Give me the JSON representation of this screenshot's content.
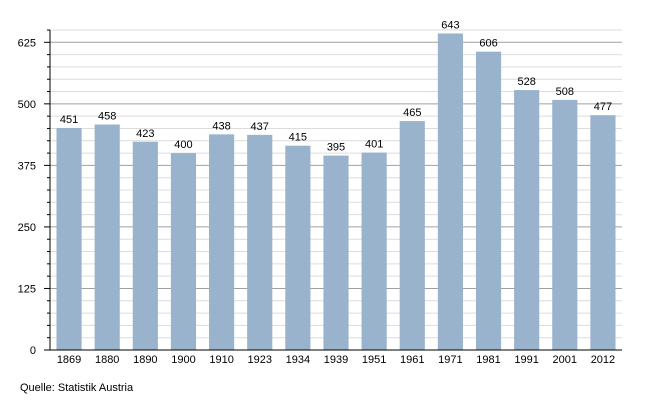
{
  "chart_data": {
    "type": "bar",
    "title": "",
    "xlabel": "",
    "ylabel": "",
    "categories": [
      "1869",
      "1880",
      "1890",
      "1900",
      "1910",
      "1923",
      "1934",
      "1939",
      "1951",
      "1961",
      "1971",
      "1981",
      "1991",
      "2001",
      "2012"
    ],
    "values": [
      451,
      458,
      423,
      400,
      438,
      437,
      415,
      395,
      401,
      465,
      643,
      606,
      528,
      508,
      477
    ],
    "ylim": [
      0,
      650
    ],
    "yticks": [
      0,
      125,
      250,
      375,
      500,
      625
    ],
    "minor_tick_step": 25,
    "grid": true,
    "data_labels": true,
    "bar_color": "#9ab3cc",
    "major_grid_color": "#a0a0a0",
    "minor_grid_color": "#dcdcdc"
  },
  "source": "Quelle: Statistik Austria"
}
